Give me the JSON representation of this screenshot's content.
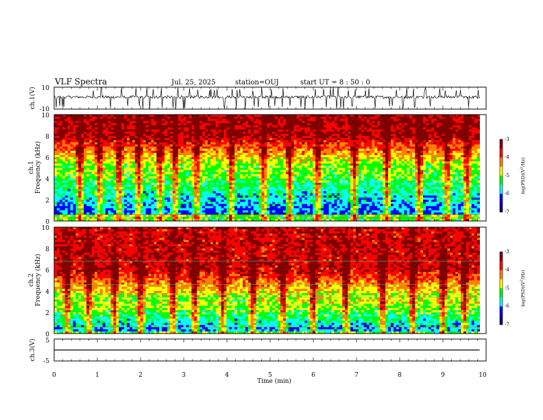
{
  "header": {
    "title": "VLF Spectra",
    "date": "Jul. 25, 2025",
    "station": "station=OUJ",
    "start": "start UT =  8 : 50 : 0"
  },
  "chart_data": [
    {
      "type": "line",
      "panel": "ch1-waveform",
      "ylabel": "ch.1(V)",
      "ylim": [
        -10,
        10
      ],
      "yticklabels": [
        "10",
        "-10"
      ],
      "x_range_min": [
        0,
        9.85
      ],
      "baseline_v": 1.0,
      "noise_amplitude_v": 2.5,
      "spike_count": 90
    },
    {
      "type": "heatmap",
      "panel": "ch1-spectrogram",
      "ylabel_channel": "ch.1",
      "ylabel": "Frequency (kHz)",
      "ylim": [
        0,
        10
      ],
      "yticklabels": [
        "0",
        "2",
        "4",
        "6",
        "8",
        "10"
      ],
      "x_range_min": [
        0,
        9.85
      ],
      "colorbar": {
        "label": "log(PSD)(V^2/Hz)",
        "label_base": "log(PSD)(V",
        "label_sup": "2",
        "label_tail": "/Hz)",
        "range": [
          -7,
          -3
        ],
        "ticks": [
          "-3",
          "-4",
          "-5",
          "-6",
          "-7"
        ]
      },
      "level_profile": {
        "low_band_khz": [
          0.5,
          5
        ],
        "low_level": -6.2,
        "high_level": -3.4
      },
      "bursts_min": [
        0.6,
        1.05,
        1.5,
        1.95,
        2.45,
        2.8,
        3.3,
        4.1,
        4.85,
        5.45,
        6.1,
        6.95,
        7.7,
        8.45,
        9.1,
        9.55
      ],
      "narrowband_khz": [
        0.3,
        0.6,
        1.7,
        2.1,
        2.5,
        2.9,
        3.3,
        3.6,
        4.7
      ]
    },
    {
      "type": "heatmap",
      "panel": "ch2-spectrogram",
      "ylabel_channel": "ch.2",
      "ylabel": "Frequency (kHz)",
      "ylim": [
        0,
        10
      ],
      "yticklabels": [
        "0",
        "2",
        "4",
        "6",
        "8",
        "10"
      ],
      "x_range_min": [
        0,
        9.85
      ],
      "colorbar": {
        "label": "log(PSD)(V^2/Hz)",
        "label_base": "log(PSD)(V",
        "label_sup": "2",
        "label_tail": "/Hz)",
        "range": [
          -7,
          -3
        ],
        "ticks": [
          "-3",
          "-4",
          "-5",
          "-6",
          "-7"
        ]
      },
      "level_profile": {
        "low_band_khz": [
          0.3,
          3
        ],
        "low_level": -6.0,
        "high_level": -3.6
      },
      "bursts_min": [
        0.3,
        0.8,
        1.4,
        2.0,
        2.75,
        3.25,
        3.9,
        4.6,
        5.3,
        6.0,
        6.75,
        7.6,
        8.3,
        9.0,
        9.5
      ],
      "narrowband_khz": [
        0.6,
        1.1,
        1.8,
        2.2,
        2.7,
        3.1,
        3.4,
        3.7,
        4.6,
        6.8
      ],
      "step_at_min": 4.6
    },
    {
      "type": "line",
      "panel": "ch3-waveform",
      "ylabel": "ch.3(V)",
      "ylim": [
        -5,
        5
      ],
      "yticklabels": [
        "5",
        "-5"
      ],
      "x_range_min": [
        0,
        9.85
      ],
      "constant_v": 0.0
    }
  ],
  "xaxis": {
    "label": "Time (min)",
    "range": [
      0,
      10
    ],
    "ticklabels": [
      "0",
      "1",
      "2",
      "3",
      "4",
      "5",
      "6",
      "7",
      "8",
      "9",
      "10"
    ]
  },
  "colors": {
    "axis": "#000000",
    "colormap": [
      "#000080",
      "#0000ff",
      "#00ffff",
      "#00ff00",
      "#ffff00",
      "#ff8000",
      "#ff0000",
      "#800000"
    ]
  }
}
